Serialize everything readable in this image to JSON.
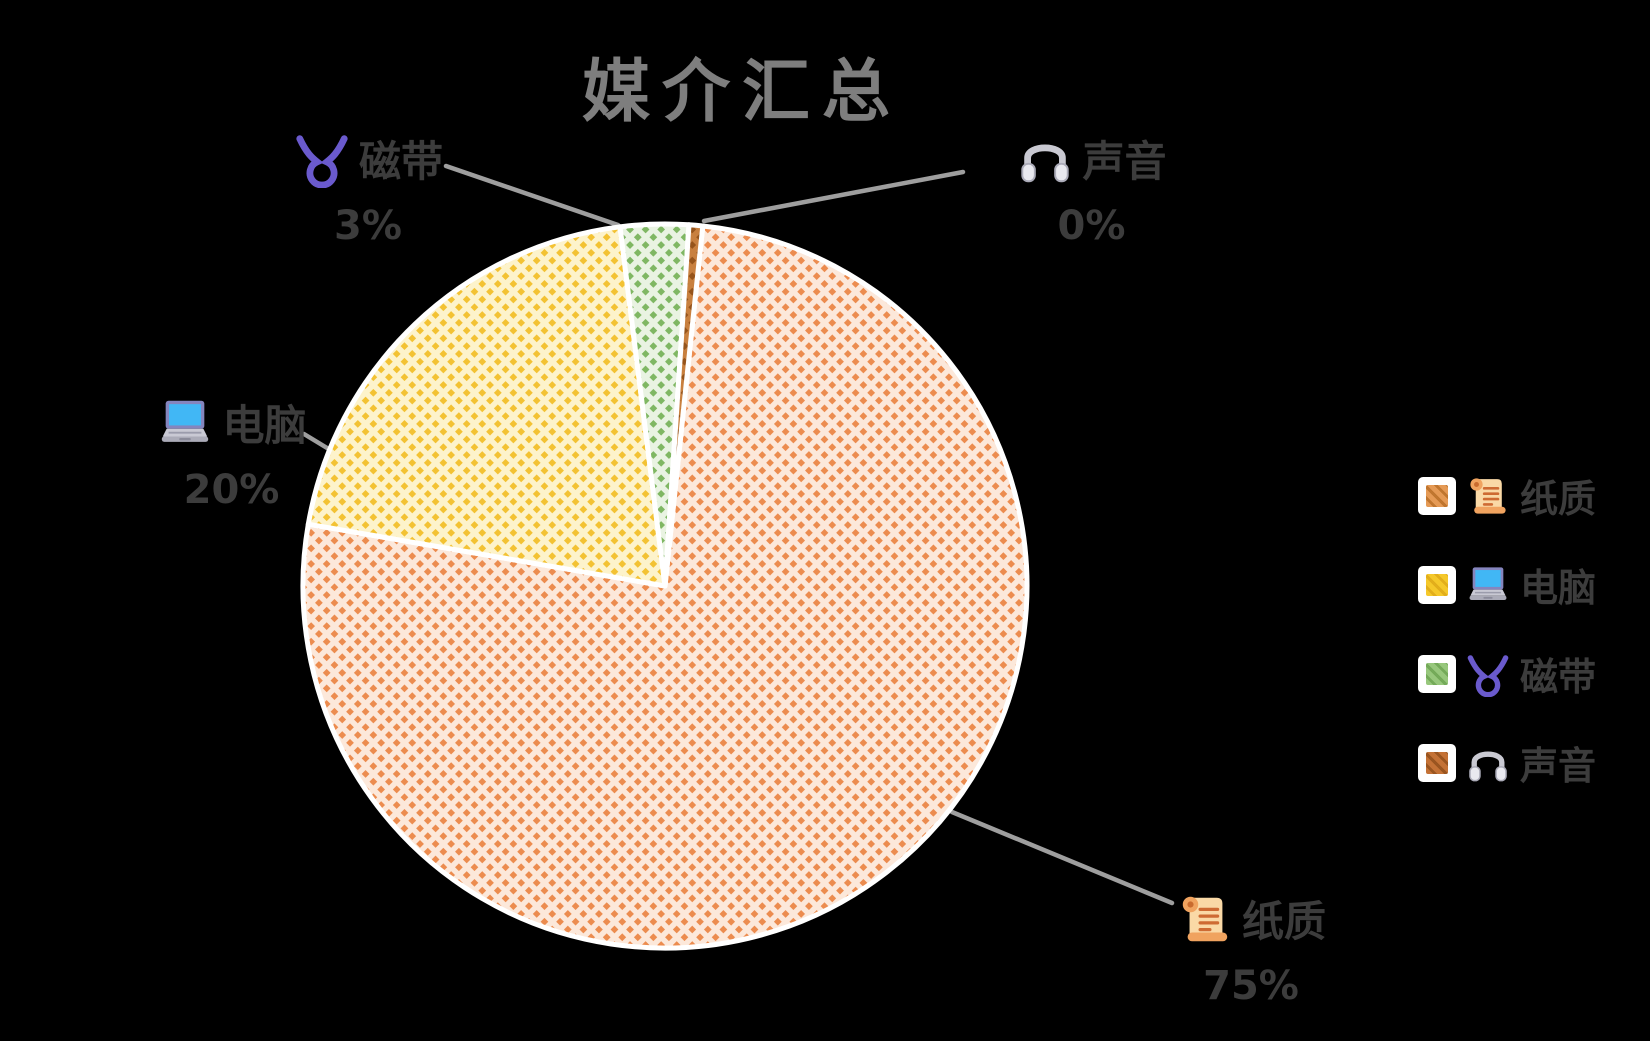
{
  "title": "媒介汇总",
  "chart_data": {
    "type": "pie",
    "title": "媒介汇总",
    "categories": [
      "纸质",
      "电脑",
      "磁带",
      "声音"
    ],
    "values": [
      75,
      20,
      3,
      0
    ],
    "value_labels": [
      "75%",
      "20%",
      "3%",
      "0%"
    ],
    "unit": "percent",
    "clockwise": true,
    "start_angle_deg": 6,
    "legend_position": "right",
    "slice_style": "diagonal-dot-hatch with white slice borders",
    "slice_colors": [
      "#EC8C4F",
      "#F3C233",
      "#7FB763",
      "#A8611F"
    ],
    "slice_base_tints": [
      "#FCE8DA",
      "#FDF3CB",
      "#E9F3E2",
      "#C8803F"
    ],
    "icons": [
      "scroll-icon",
      "laptop-icon",
      "curly-loop-icon",
      "headphones-icon"
    ]
  },
  "callouts": [
    {
      "name": "纸质",
      "pct": "75%",
      "icon": "scroll-icon"
    },
    {
      "name": "电脑",
      "pct": "20%",
      "icon": "laptop-icon"
    },
    {
      "name": "磁带",
      "pct": "3%",
      "icon": "curly-loop-icon"
    },
    {
      "name": "声音",
      "pct": "0%",
      "icon": "headphones-icon"
    }
  ],
  "legend": {
    "items": [
      {
        "label": "纸质",
        "icon": "scroll-icon",
        "swatch_color": "#E59A55"
      },
      {
        "label": "电脑",
        "icon": "laptop-icon",
        "swatch_color": "#F5C82A"
      },
      {
        "label": "磁带",
        "icon": "curly-loop-icon",
        "swatch_color": "#97C77C"
      },
      {
        "label": "声音",
        "icon": "headphones-icon",
        "swatch_color": "#C47236"
      }
    ]
  },
  "colors": {
    "background": "#000000",
    "title_text": "#7E7E7E",
    "label_text": "#3C3C3C",
    "leader_line": "#9E9E9E",
    "slice_border": "#FFFFFF"
  }
}
